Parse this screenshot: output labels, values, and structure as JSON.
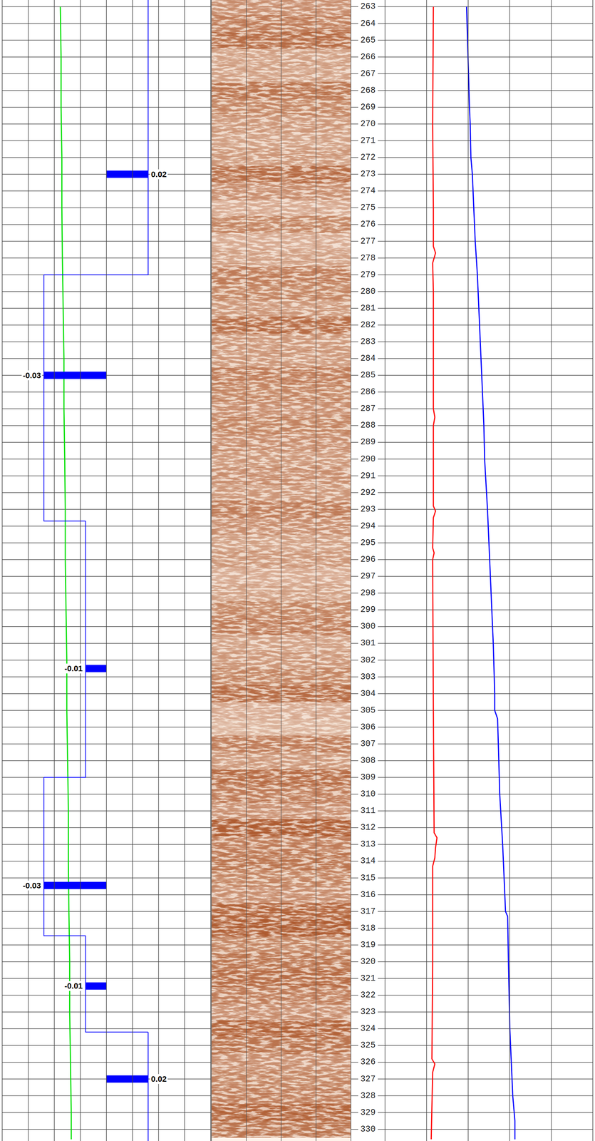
{
  "chart_data": {
    "type": "well_log",
    "ylim": [
      262.6,
      330.7
    ],
    "yticks": [
      263,
      264,
      265,
      266,
      267,
      268,
      269,
      270,
      271,
      272,
      273,
      274,
      275,
      276,
      277,
      278,
      279,
      280,
      281,
      282,
      283,
      284,
      285,
      286,
      287,
      288,
      289,
      290,
      291,
      292,
      293,
      294,
      295,
      296,
      297,
      298,
      299,
      300,
      301,
      302,
      303,
      304,
      305,
      306,
      307,
      308,
      309,
      310,
      311,
      312,
      313,
      314,
      315,
      316,
      317,
      318,
      319,
      320,
      321,
      322,
      323,
      324,
      325,
      326,
      327,
      328,
      329,
      330
    ],
    "grid": true,
    "tick_labels": "y",
    "tracks": [
      {
        "xlim": [
          0,
          8
        ],
        "xticks": [
          0,
          1,
          2,
          3,
          4,
          5,
          6,
          7,
          8
        ],
        "series": [
          {
            "type": "line",
            "color": "#00e000",
            "depth": [
              263,
              266,
              269,
              272,
              275,
              278,
              281,
              284,
              287,
              290,
              293,
              296,
              299,
              302,
              305,
              308,
              311,
              314,
              317,
              320,
              323,
              326,
              329,
              330.6
            ],
            "values": [
              2.23,
              2.26,
              2.26,
              2.29,
              2.29,
              2.31,
              2.34,
              2.37,
              2.37,
              2.4,
              2.42,
              2.42,
              2.45,
              2.48,
              2.48,
              2.51,
              2.54,
              2.54,
              2.56,
              2.59,
              2.59,
              2.62,
              2.65,
              2.65
            ]
          },
          {
            "type": "step",
            "color": "#0000ff",
            "xlim": [
              -0.05,
              0.05
            ],
            "depth_edges": [
              262.6,
              279.0,
              293.7,
              309.0,
              318.45,
              324.2,
              330.7
            ],
            "values": [
              0.02,
              -0.03,
              -0.01,
              -0.03,
              -0.01,
              0.02
            ]
          },
          {
            "type": "bar",
            "orientation": "horizontal",
            "color": "#0000ff",
            "xlim": [
              -0.05,
              0.05
            ],
            "data_labels": true,
            "depth": [
              273,
              285,
              302.5,
              315.45,
              321.45,
              327
            ],
            "values": [
              0.02,
              -0.03,
              -0.01,
              -0.03,
              -0.01,
              0.02
            ]
          }
        ]
      },
      {
        "xlim": [
          0,
          4
        ],
        "xticks": [
          0,
          1,
          2,
          3,
          4
        ],
        "series": [
          {
            "type": "image",
            "color": "#a0400f",
            "depth": [
              263,
              264,
              265,
              266,
              267,
              268,
              269,
              270,
              271,
              272,
              273,
              274,
              275,
              276,
              277,
              278,
              279,
              280,
              281,
              282,
              283,
              284,
              285,
              286,
              287,
              288,
              289,
              290,
              291,
              292,
              293,
              294,
              295,
              296,
              297,
              298,
              299,
              300,
              301,
              302,
              303,
              304,
              305,
              306,
              307,
              308,
              309,
              310,
              311,
              312,
              313,
              314,
              315,
              316,
              317,
              318,
              319,
              320,
              321,
              322,
              323,
              324,
              325,
              326,
              327,
              328,
              329,
              330
            ],
            "values": [
              0.5,
              0.6,
              0.7,
              0.4,
              0.4,
              0.65,
              0.55,
              0.45,
              0.4,
              0.45,
              0.7,
              0.5,
              0.35,
              0.55,
              0.35,
              0.4,
              0.6,
              0.55,
              0.45,
              0.7,
              0.45,
              0.45,
              0.6,
              0.55,
              0.5,
              0.55,
              0.5,
              0.45,
              0.5,
              0.45,
              0.6,
              0.5,
              0.4,
              0.45,
              0.35,
              0.4,
              0.55,
              0.6,
              0.4,
              0.45,
              0.55,
              0.7,
              0.35,
              0.3,
              0.6,
              0.45,
              0.7,
              0.6,
              0.5,
              0.8,
              0.6,
              0.65,
              0.55,
              0.5,
              0.75,
              0.8,
              0.55,
              0.65,
              0.7,
              0.6,
              0.5,
              0.75,
              0.65,
              0.5,
              0.55,
              0.6,
              0.75,
              0.65
            ]
          }
        ]
      },
      {
        "xlim": [
          0,
          5
        ],
        "xticks": [
          0,
          1,
          2,
          3,
          4,
          5
        ],
        "series": [
          {
            "type": "line",
            "color": "#ff0000",
            "depth": [
              263,
              270,
              275,
              277.3,
              277.7,
              278.3,
              280,
              287,
              287.5,
              288,
              292.8,
              293.1,
              293.5,
              295.3,
              295.6,
              296,
              305,
              312.3,
              312.6,
              313.2,
              313.8,
              314.3,
              320,
              325.8,
              326.1,
              326.6,
              330.6
            ],
            "values": [
              1.163,
              1.146,
              1.163,
              1.163,
              1.215,
              1.146,
              1.163,
              1.163,
              1.198,
              1.163,
              1.163,
              1.215,
              1.163,
              1.146,
              1.181,
              1.146,
              1.163,
              1.181,
              1.25,
              1.215,
              1.198,
              1.146,
              1.146,
              1.128,
              1.198,
              1.146,
              1.111
            ]
          },
          {
            "type": "line",
            "color": "#0000ff",
            "depth": [
              263,
              266,
              269,
              270,
              272,
              273,
              275,
              277,
              279,
              281,
              284,
              286,
              288,
              290,
              293,
              295,
              297,
              299,
              301,
              304,
              305,
              305.5,
              307,
              310,
              313,
              315,
              317,
              317.3,
              320,
              322,
              324,
              326,
              327,
              328,
              329.5,
              330.6
            ],
            "values": [
              1.962,
              1.997,
              2.031,
              2.049,
              2.066,
              2.101,
              2.135,
              2.17,
              2.222,
              2.257,
              2.309,
              2.344,
              2.378,
              2.396,
              2.465,
              2.5,
              2.535,
              2.569,
              2.604,
              2.639,
              2.639,
              2.708,
              2.726,
              2.76,
              2.83,
              2.865,
              2.899,
              2.951,
              2.969,
              2.986,
              3.003,
              3.038,
              3.056,
              3.073,
              3.125,
              3.125
            ]
          }
        ]
      }
    ]
  }
}
